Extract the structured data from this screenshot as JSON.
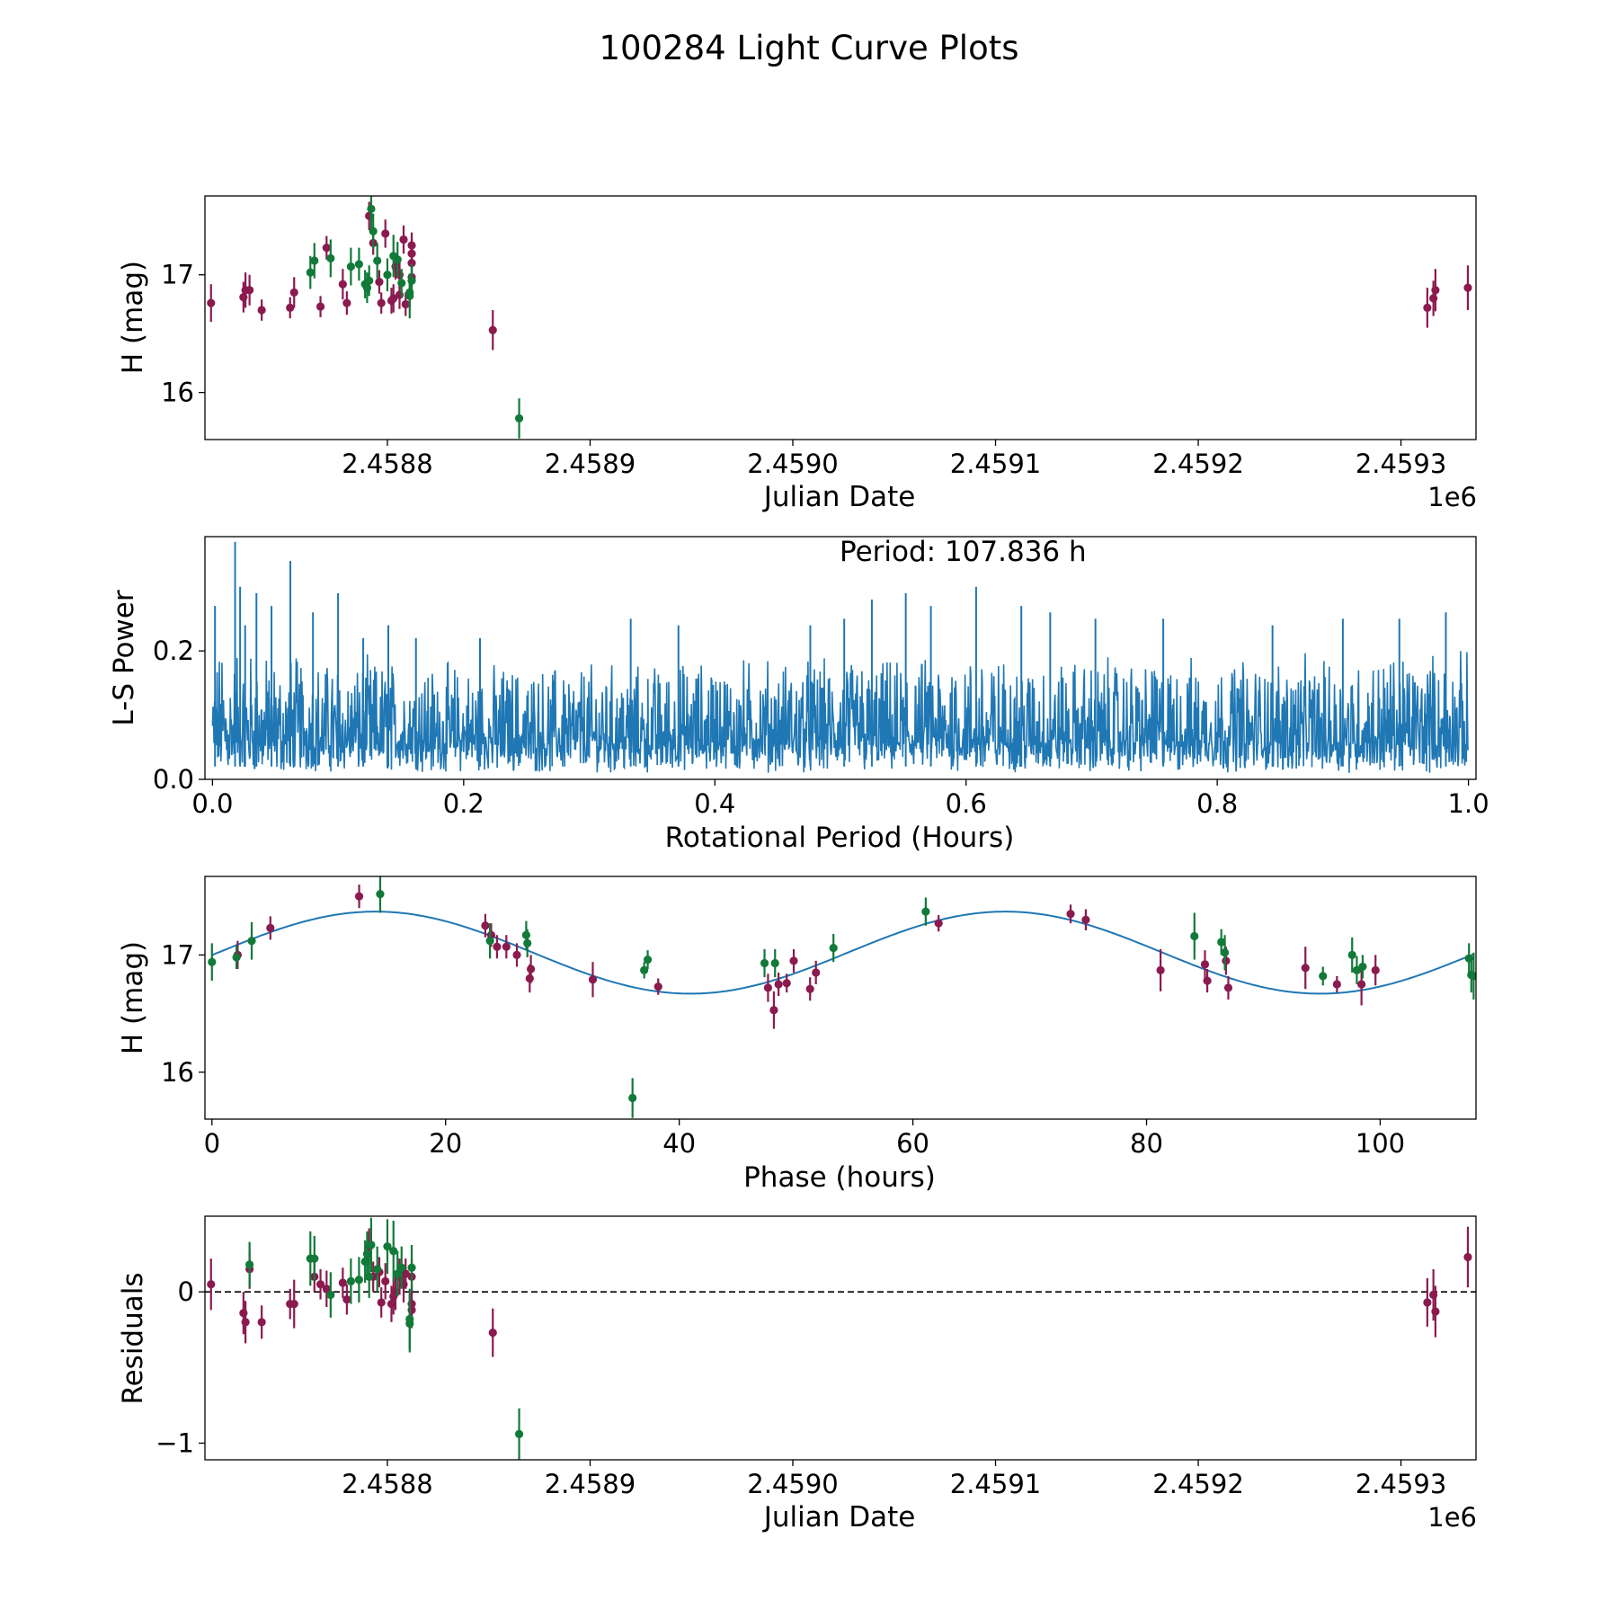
{
  "figure": {
    "title": "100284 Light Curve Plots"
  },
  "colors": {
    "filter_a": "#8b1a4f",
    "filter_b": "#117a38",
    "line": "#1f77b4",
    "axis": "#000000"
  },
  "chart_data": [
    {
      "id": "lc",
      "type": "scatter",
      "title": "",
      "xlabel": "Julian Date",
      "ylabel": "H (mag)",
      "x_offset_label": "1e6",
      "xlim": [
        2.45871,
        2.459337
      ],
      "ylim": [
        15.6,
        17.67
      ],
      "xticks": [
        2.4588,
        2.4589,
        2.459,
        2.4591,
        2.4592,
        2.4593
      ],
      "xtick_labels": [
        "2.4588",
        "2.4589",
        "2.4590",
        "2.4591",
        "2.4592",
        "2.4593"
      ],
      "yticks": [
        16,
        17
      ],
      "ytick_labels": [
        "16",
        "17"
      ],
      "series": [
        {
          "name": "filter A",
          "color_key": "filter_a",
          "points": [
            [
              2.458713,
              16.76,
              0.16
            ],
            [
              2.458729,
              16.81,
              0.13
            ],
            [
              2.45873,
              16.87,
              0.15
            ],
            [
              2.458732,
              16.87,
              0.13
            ],
            [
              2.458738,
              16.7,
              0.09
            ],
            [
              2.458752,
              16.72,
              0.09
            ],
            [
              2.458754,
              16.85,
              0.13
            ],
            [
              2.458767,
              16.73,
              0.09
            ],
            [
              2.45877,
              17.23,
              0.1
            ],
            [
              2.458778,
              16.92,
              0.13
            ],
            [
              2.45878,
              16.76,
              0.1
            ],
            [
              2.458791,
              17.5,
              0.12
            ],
            [
              2.458793,
              17.27,
              0.1
            ],
            [
              2.458796,
              16.94,
              0.1
            ],
            [
              2.458797,
              16.76,
              0.09
            ],
            [
              2.458799,
              17.35,
              0.12
            ],
            [
              2.458802,
              16.78,
              0.11
            ],
            [
              2.458803,
              16.8,
              0.12
            ],
            [
              2.458804,
              17.07,
              0.11
            ],
            [
              2.458806,
              16.83,
              0.12
            ],
            [
              2.458806,
              17.0,
              0.12
            ],
            [
              2.458808,
              17.3,
              0.12
            ],
            [
              2.458809,
              16.75,
              0.1
            ],
            [
              2.458812,
              17.1,
              0.15
            ],
            [
              2.458812,
              17.18,
              0.14
            ],
            [
              2.458812,
              17.25,
              0.11
            ],
            [
              2.458812,
              16.98,
              0.12
            ],
            [
              2.458852,
              16.53,
              0.17
            ],
            [
              2.459313,
              16.72,
              0.17
            ],
            [
              2.459316,
              16.8,
              0.15
            ],
            [
              2.459317,
              16.87,
              0.18
            ],
            [
              2.459333,
              16.89,
              0.19
            ]
          ]
        },
        {
          "name": "filter B",
          "color_key": "filter_b",
          "points": [
            [
              2.458762,
              17.02,
              0.14
            ],
            [
              2.458764,
              17.12,
              0.15
            ],
            [
              2.458772,
              17.14,
              0.16
            ],
            [
              2.458782,
              17.07,
              0.16
            ],
            [
              2.458786,
              17.09,
              0.14
            ],
            [
              2.458789,
              16.92,
              0.12
            ],
            [
              2.45879,
              16.89,
              0.13
            ],
            [
              2.458791,
              16.95,
              0.13
            ],
            [
              2.458792,
              17.56,
              0.17
            ],
            [
              2.458793,
              17.37,
              0.15
            ],
            [
              2.458795,
              17.12,
              0.15
            ],
            [
              2.4588,
              17.0,
              0.14
            ],
            [
              2.458803,
              17.16,
              0.18
            ],
            [
              2.458805,
              17.13,
              0.15
            ],
            [
              2.458807,
              16.93,
              0.12
            ],
            [
              2.458811,
              16.85,
              0.13
            ],
            [
              2.458811,
              16.82,
              0.19
            ],
            [
              2.458812,
              16.95,
              0.14
            ],
            [
              2.458865,
              15.78,
              0.17
            ]
          ]
        }
      ]
    },
    {
      "id": "ls",
      "type": "line",
      "title": "",
      "xlabel": "Rotational Period (Hours)",
      "ylabel": "L-S Power",
      "annotation": "Period: 107.836 h",
      "xlim": [
        -0.006,
        1.006
      ],
      "ylim": [
        0,
        0.378
      ],
      "xticks": [
        0,
        0.2,
        0.4,
        0.6,
        0.8,
        1.0
      ],
      "xtick_labels": [
        "0.0",
        "0.2",
        "0.4",
        "0.6",
        "0.8",
        "1.0"
      ],
      "yticks": [
        0,
        0.2
      ],
      "ytick_labels": [
        "0.0",
        "0.2"
      ],
      "series": [
        {
          "name": "L-S power",
          "color_key": "line",
          "envelope_x": [
            0.0,
            0.05,
            0.1,
            0.15,
            0.2,
            0.25,
            0.3,
            0.35,
            0.4,
            0.45,
            0.5,
            0.55,
            0.6,
            0.65,
            0.7,
            0.75,
            0.8,
            0.85,
            0.9,
            0.95,
            1.0
          ],
          "envelope_y": [
            0.16,
            0.15,
            0.14,
            0.14,
            0.13,
            0.13,
            0.13,
            0.13,
            0.14,
            0.14,
            0.14,
            0.14,
            0.15,
            0.14,
            0.14,
            0.14,
            0.14,
            0.14,
            0.14,
            0.15,
            0.15
          ],
          "peaks_x": [
            0.002,
            0.018,
            0.022,
            0.026,
            0.035,
            0.047,
            0.062,
            0.08,
            0.1,
            0.12,
            0.14,
            0.162,
            0.213,
            0.333,
            0.371,
            0.476,
            0.503,
            0.525,
            0.552,
            0.572,
            0.608,
            0.644,
            0.667,
            0.703,
            0.757,
            0.844,
            0.9,
            0.945,
            0.982
          ],
          "peaks_y": [
            0.27,
            0.37,
            0.3,
            0.24,
            0.29,
            0.27,
            0.34,
            0.26,
            0.29,
            0.22,
            0.24,
            0.22,
            0.22,
            0.25,
            0.24,
            0.24,
            0.25,
            0.28,
            0.29,
            0.27,
            0.3,
            0.27,
            0.26,
            0.25,
            0.25,
            0.24,
            0.25,
            0.25,
            0.26
          ]
        }
      ]
    },
    {
      "id": "phase",
      "type": "scatter",
      "title": "",
      "xlabel": "Phase (hours)",
      "ylabel": "H (mag)",
      "xlim": [
        -0.6,
        108.2
      ],
      "ylim": [
        15.6,
        17.67
      ],
      "xticks": [
        0,
        20,
        40,
        60,
        80,
        100
      ],
      "xtick_labels": [
        "0",
        "20",
        "40",
        "60",
        "80",
        "100"
      ],
      "yticks": [
        16,
        17
      ],
      "ytick_labels": [
        "16",
        "17"
      ],
      "model": {
        "color_key": "line",
        "mean": 17.02,
        "amplitude": 0.35,
        "period": 53.9,
        "phase_peak": 14
      },
      "series": [
        {
          "name": "filter A",
          "color_key": "filter_a",
          "points": [
            [
              2.2,
              17.0,
              0.12
            ],
            [
              5.0,
              17.23,
              0.1
            ],
            [
              12.6,
              17.5,
              0.1
            ],
            [
              23.4,
              17.25,
              0.1
            ],
            [
              23.9,
              17.17,
              0.1
            ],
            [
              24.4,
              17.07,
              0.1
            ],
            [
              25.2,
              17.07,
              0.1
            ],
            [
              26.1,
              17.0,
              0.1
            ],
            [
              27.2,
              16.8,
              0.12
            ],
            [
              27.3,
              16.88,
              0.12
            ],
            [
              32.6,
              16.79,
              0.15
            ],
            [
              38.2,
              16.73,
              0.07
            ],
            [
              47.6,
              16.72,
              0.12
            ],
            [
              48.1,
              16.53,
              0.16
            ],
            [
              48.5,
              16.75,
              0.1
            ],
            [
              49.2,
              16.76,
              0.08
            ],
            [
              49.8,
              16.95,
              0.1
            ],
            [
              51.2,
              16.71,
              0.1
            ],
            [
              51.7,
              16.85,
              0.1
            ],
            [
              62.2,
              17.27,
              0.07
            ],
            [
              73.5,
              17.35,
              0.08
            ],
            [
              74.8,
              17.3,
              0.09
            ],
            [
              81.2,
              16.87,
              0.18
            ],
            [
              85.0,
              16.92,
              0.12
            ],
            [
              85.2,
              16.78,
              0.1
            ],
            [
              86.8,
              16.95,
              0.12
            ],
            [
              87.0,
              16.72,
              0.1
            ],
            [
              93.6,
              16.89,
              0.18
            ],
            [
              96.3,
              16.75,
              0.07
            ],
            [
              98.4,
              16.75,
              0.18
            ],
            [
              99.6,
              16.87,
              0.13
            ]
          ]
        },
        {
          "name": "filter B",
          "color_key": "filter_b",
          "points": [
            [
              0.0,
              16.94,
              0.16
            ],
            [
              2.1,
              16.98,
              0.1
            ],
            [
              3.4,
              17.12,
              0.16
            ],
            [
              14.4,
              17.52,
              0.16
            ],
            [
              23.8,
              17.12,
              0.15
            ],
            [
              26.9,
              17.17,
              0.12
            ],
            [
              27.0,
              17.1,
              0.12
            ],
            [
              36.0,
              15.78,
              0.17
            ],
            [
              37.0,
              16.87,
              0.07
            ],
            [
              37.3,
              16.96,
              0.08
            ],
            [
              47.3,
              16.93,
              0.12
            ],
            [
              48.2,
              16.93,
              0.12
            ],
            [
              53.2,
              17.06,
              0.12
            ],
            [
              61.1,
              17.37,
              0.12
            ],
            [
              84.1,
              17.16,
              0.2
            ],
            [
              86.4,
              17.11,
              0.11
            ],
            [
              86.7,
              17.02,
              0.15
            ],
            [
              95.1,
              16.82,
              0.08
            ],
            [
              97.6,
              17.0,
              0.15
            ],
            [
              98.0,
              16.87,
              0.12
            ],
            [
              98.5,
              16.9,
              0.1
            ],
            [
              107.6,
              16.97,
              0.13
            ],
            [
              107.8,
              16.83,
              0.15
            ],
            [
              108.0,
              16.82,
              0.2
            ]
          ]
        }
      ]
    },
    {
      "id": "res",
      "type": "scatter",
      "title": "",
      "xlabel": "Julian Date",
      "ylabel": "Residuals",
      "x_offset_label": "1e6",
      "xlim": [
        2.45871,
        2.459337
      ],
      "ylim": [
        -1.11,
        0.5
      ],
      "xticks": [
        2.4588,
        2.4589,
        2.459,
        2.4591,
        2.4592,
        2.4593
      ],
      "xtick_labels": [
        "2.4588",
        "2.4589",
        "2.4590",
        "2.4591",
        "2.4592",
        "2.4593"
      ],
      "yticks": [
        -1,
        0
      ],
      "ytick_labels": [
        "−1",
        "0"
      ],
      "reference_line": 0,
      "series": [
        {
          "name": "filter A",
          "color_key": "filter_a",
          "points": [
            [
              2.458713,
              0.05,
              0.17
            ],
            [
              2.458729,
              -0.14,
              0.14
            ],
            [
              2.45873,
              -0.2,
              0.14
            ],
            [
              2.458732,
              0.15,
              0.13
            ],
            [
              2.458738,
              -0.2,
              0.11
            ],
            [
              2.458752,
              -0.08,
              0.1
            ],
            [
              2.458754,
              -0.08,
              0.16
            ],
            [
              2.458764,
              0.1,
              0.1
            ],
            [
              2.458767,
              0.05,
              0.1
            ],
            [
              2.45877,
              0.02,
              0.12
            ],
            [
              2.458778,
              0.06,
              0.1
            ],
            [
              2.45878,
              -0.05,
              0.1
            ],
            [
              2.458791,
              0.3,
              0.12
            ],
            [
              2.458793,
              0.1,
              0.1
            ],
            [
              2.458796,
              0.13,
              0.1
            ],
            [
              2.458797,
              -0.07,
              0.1
            ],
            [
              2.458799,
              0.07,
              0.12
            ],
            [
              2.458802,
              -0.08,
              0.12
            ],
            [
              2.458803,
              -0.03,
              0.12
            ],
            [
              2.458804,
              0.0,
              0.12
            ],
            [
              2.458806,
              0.1,
              0.12
            ],
            [
              2.458808,
              0.05,
              0.12
            ],
            [
              2.458809,
              0.12,
              0.1
            ],
            [
              2.458812,
              -0.08,
              0.12
            ],
            [
              2.458812,
              0.1,
              0.12
            ],
            [
              2.458812,
              -0.12,
              0.12
            ],
            [
              2.458852,
              -0.27,
              0.16
            ],
            [
              2.459313,
              -0.07,
              0.16
            ],
            [
              2.459316,
              -0.02,
              0.17
            ],
            [
              2.459317,
              -0.13,
              0.17
            ],
            [
              2.459333,
              0.23,
              0.2
            ]
          ]
        },
        {
          "name": "filter B",
          "color_key": "filter_b",
          "points": [
            [
              2.458732,
              0.18,
              0.15
            ],
            [
              2.458762,
              0.22,
              0.18
            ],
            [
              2.458764,
              0.22,
              0.15
            ],
            [
              2.458772,
              -0.02,
              0.15
            ],
            [
              2.458782,
              0.07,
              0.15
            ],
            [
              2.458786,
              0.08,
              0.15
            ],
            [
              2.458789,
              0.2,
              0.14
            ],
            [
              2.45879,
              0.25,
              0.15
            ],
            [
              2.458791,
              0.1,
              0.14
            ],
            [
              2.458792,
              0.31,
              0.18
            ],
            [
              2.458795,
              0.15,
              0.15
            ],
            [
              2.4588,
              0.3,
              0.18
            ],
            [
              2.458803,
              0.27,
              0.2
            ],
            [
              2.458805,
              0.12,
              0.15
            ],
            [
              2.458807,
              0.16,
              0.14
            ],
            [
              2.458811,
              -0.18,
              0.2
            ],
            [
              2.458811,
              -0.21,
              0.19
            ],
            [
              2.458812,
              0.16,
              0.15
            ],
            [
              2.458865,
              -0.94,
              0.17
            ]
          ]
        }
      ]
    }
  ]
}
